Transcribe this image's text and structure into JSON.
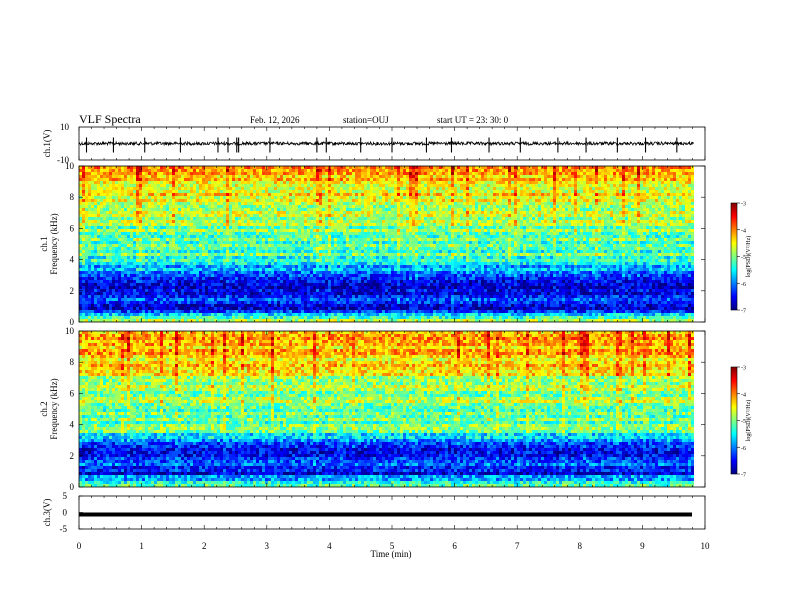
{
  "header": {
    "title": "VLF Spectra",
    "date": "Feb. 12, 2026",
    "station": "station=OUJ",
    "start_ut": "start  UT =   23: 30: 0"
  },
  "chart_data": [
    {
      "type": "line",
      "name": "ch1-waveform",
      "ylabel": "ch.1(V)",
      "ylim": [
        -10,
        10
      ],
      "yticks": [
        "10",
        "-10"
      ],
      "xlim": [
        0,
        10
      ],
      "baseline": 0,
      "trace_end_min": 9.82,
      "spikes_min": [
        0.12,
        0.55,
        1.05,
        1.62,
        2.22,
        2.38,
        2.52,
        2.55,
        3.05,
        3.8,
        3.95,
        4.5,
        5.0,
        5.55,
        5.95,
        6.55,
        7.05,
        7.65,
        8.1,
        8.6,
        9.05,
        9.55
      ]
    },
    {
      "type": "heatmap",
      "name": "ch1-spectrogram",
      "ylabel": "ch.1 Frequency (kHz)",
      "ylim": [
        0,
        10
      ],
      "yticks": [
        "0",
        "2",
        "4",
        "6",
        "8",
        "10"
      ],
      "xlim": [
        0,
        10
      ],
      "colorbar": {
        "label": "log(PSD)(V²/Hz)",
        "range": [
          -7,
          -3
        ],
        "ticks": [
          "-3",
          "-4",
          "-5",
          "-6",
          "-7"
        ]
      },
      "band_levels": [
        {
          "f": 0.0,
          "v": -4.6
        },
        {
          "f": 0.4,
          "v": -5.4
        },
        {
          "f": 0.8,
          "v": -6.6
        },
        {
          "f": 1.5,
          "v": -6.1
        },
        {
          "f": 2.2,
          "v": -6.7
        },
        {
          "f": 3.2,
          "v": -6.2
        },
        {
          "f": 3.8,
          "v": -5.3
        },
        {
          "f": 5.0,
          "v": -5.1
        },
        {
          "f": 6.5,
          "v": -4.9
        },
        {
          "f": 8.0,
          "v": -4.5
        },
        {
          "f": 10.0,
          "v": -4.2
        }
      ]
    },
    {
      "type": "heatmap",
      "name": "ch2-spectrogram",
      "ylabel": "ch.2 Frequency (kHz)",
      "ylim": [
        0,
        10
      ],
      "yticks": [
        "0",
        "2",
        "4",
        "6",
        "8",
        "10"
      ],
      "xlim": [
        0,
        10
      ],
      "colorbar": {
        "label": "log(PSD)(V²/Hz)",
        "range": [
          -7,
          -3
        ],
        "ticks": [
          "-3",
          "-4",
          "-5",
          "-6",
          "-7"
        ]
      },
      "band_levels": [
        {
          "f": 0.0,
          "v": -4.8
        },
        {
          "f": 0.4,
          "v": -5.6
        },
        {
          "f": 0.9,
          "v": -6.5
        },
        {
          "f": 1.5,
          "v": -6.0
        },
        {
          "f": 2.2,
          "v": -6.6
        },
        {
          "f": 3.0,
          "v": -6.1
        },
        {
          "f": 3.6,
          "v": -5.2
        },
        {
          "f": 5.0,
          "v": -5.0
        },
        {
          "f": 6.5,
          "v": -4.8
        },
        {
          "f": 8.0,
          "v": -4.4
        },
        {
          "f": 10.0,
          "v": -4.1
        }
      ]
    },
    {
      "type": "line",
      "name": "ch3-waveform",
      "ylabel": "ch.3(V)",
      "ylim": [
        -5,
        5
      ],
      "yticks": [
        "5",
        "0",
        "-5"
      ],
      "xlim": [
        0,
        10
      ],
      "constant_value": 0
    }
  ],
  "xaxis": {
    "label": "Time (min)",
    "ticks": [
      "0",
      "1",
      "2",
      "3",
      "4",
      "5",
      "6",
      "7",
      "8",
      "9",
      "10"
    ]
  },
  "colors": {
    "axes": "#000000",
    "trace": "#000000",
    "colormap": [
      "#00007f",
      "#0000ff",
      "#007fff",
      "#00ffff",
      "#7fff7f",
      "#ffff00",
      "#ff7f00",
      "#ff0000",
      "#7f0000"
    ]
  }
}
